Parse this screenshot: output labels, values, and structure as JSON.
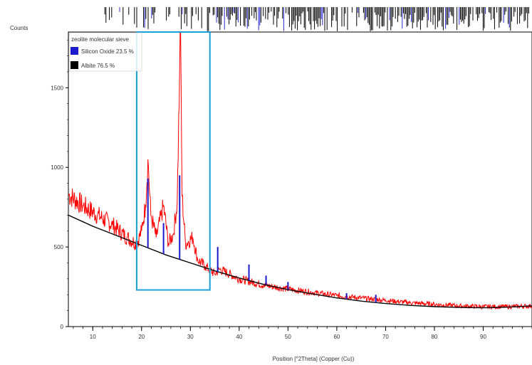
{
  "chart_data": {
    "type": "line",
    "title": "",
    "ylabel": "Counts",
    "xlabel": "Position [°2Theta] (Copper (Cu))",
    "xlim": [
      5,
      100
    ],
    "ylim": [
      0,
      1850
    ],
    "x_ticks": [
      10,
      20,
      30,
      40,
      50,
      60,
      70,
      80,
      90
    ],
    "y_ticks": [
      0,
      500,
      1000,
      1500
    ],
    "legend": {
      "placement": "top-left",
      "title": "zeolite molecular sieve",
      "entries": [
        {
          "label": "Silicon Oxide 23.5 %",
          "color": "#1a1acc"
        },
        {
          "label": "Albite 76.5 %",
          "color": "#000000"
        }
      ]
    },
    "highlight_box": {
      "x_range": [
        19,
        34
      ],
      "y_range": [
        230,
        1850
      ],
      "color": "#1aa0d8"
    },
    "series": [
      {
        "role": "observed",
        "color": "#ff0000",
        "points": [
          [
            5,
            830
          ],
          [
            8,
            760
          ],
          [
            11,
            700
          ],
          [
            14,
            640
          ],
          [
            17,
            560
          ],
          [
            19,
            520
          ],
          [
            20,
            600
          ],
          [
            20.8,
            760
          ],
          [
            21.3,
            1050
          ],
          [
            21.9,
            700
          ],
          [
            23,
            560
          ],
          [
            24.5,
            760
          ],
          [
            25.5,
            520
          ],
          [
            26.5,
            580
          ],
          [
            27.3,
            780
          ],
          [
            27.8,
            1600
          ],
          [
            28.0,
            1850
          ],
          [
            28.3,
            820
          ],
          [
            29,
            520
          ],
          [
            30.5,
            560
          ],
          [
            31.5,
            420
          ],
          [
            33,
            380
          ],
          [
            35,
            330
          ],
          [
            36,
            360
          ],
          [
            40,
            300
          ],
          [
            45,
            260
          ],
          [
            50,
            235
          ],
          [
            55,
            215
          ],
          [
            60,
            195
          ],
          [
            65,
            180
          ],
          [
            70,
            165
          ],
          [
            75,
            150
          ],
          [
            80,
            140
          ],
          [
            85,
            130
          ],
          [
            90,
            125
          ],
          [
            95,
            125
          ],
          [
            100,
            130
          ]
        ]
      },
      {
        "role": "fit",
        "color": "#000000",
        "points": [
          [
            5,
            700
          ],
          [
            10,
            630
          ],
          [
            15,
            570
          ],
          [
            20,
            510
          ],
          [
            25,
            450
          ],
          [
            30,
            400
          ],
          [
            35,
            350
          ],
          [
            40,
            305
          ],
          [
            45,
            265
          ],
          [
            50,
            232
          ],
          [
            55,
            205
          ],
          [
            60,
            180
          ],
          [
            65,
            160
          ],
          [
            70,
            145
          ],
          [
            75,
            133
          ],
          [
            80,
            125
          ],
          [
            85,
            120
          ],
          [
            90,
            118
          ],
          [
            95,
            122
          ],
          [
            100,
            130
          ]
        ]
      },
      {
        "role": "phase",
        "color": "#1a1acc",
        "points": [
          [
            21.3,
            930
          ],
          [
            24.5,
            650
          ],
          [
            27.8,
            950
          ],
          [
            35.6,
            500
          ],
          [
            42,
            390
          ],
          [
            45.5,
            320
          ],
          [
            50,
            280
          ],
          [
            62,
            210
          ],
          [
            68,
            200
          ]
        ]
      }
    ]
  }
}
